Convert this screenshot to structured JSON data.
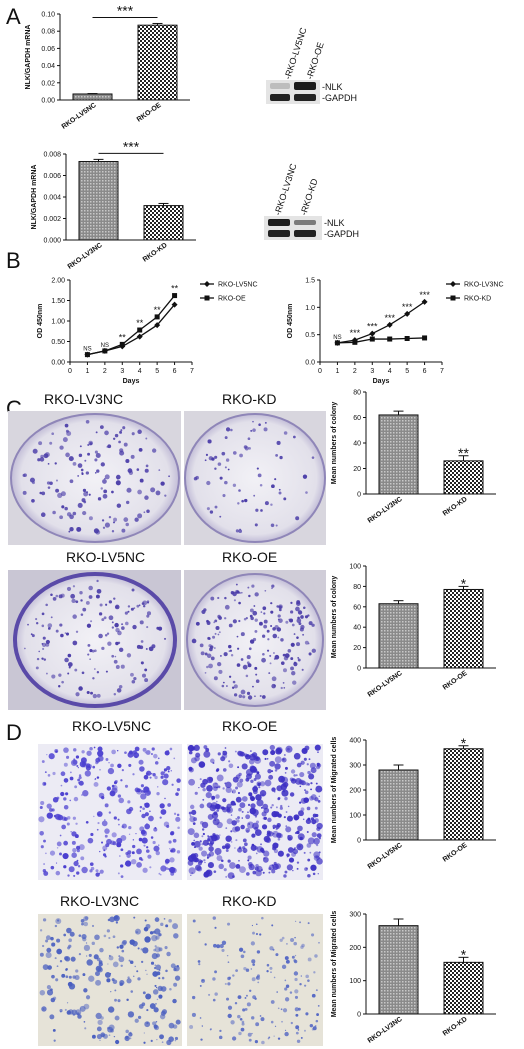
{
  "panels": {
    "A": "A",
    "B": "B",
    "C": "C",
    "D": "D"
  },
  "colors": {
    "bar_fill": "#9a9a9a",
    "bar_dark": "#555555",
    "stain": "#4a3ca8",
    "dish_bg": "#e8e6ee",
    "field_bg": "#ecebf4",
    "field_bg2": "#e6e3d8"
  },
  "chart_data": [
    {
      "id": "A-top",
      "type": "bar",
      "categories": [
        "RKO-LV5NC",
        "RKO-OE"
      ],
      "values": [
        0.007,
        0.087
      ],
      "errors": [
        0.0005,
        0.002
      ],
      "ylabel": "NLK/GAPDH mRNA",
      "ylim": [
        0,
        0.1
      ],
      "yticks": [
        "0.00",
        "0.02",
        "0.04",
        "0.06",
        "0.08",
        "0.10"
      ],
      "significance": "***"
    },
    {
      "id": "A-bottom",
      "type": "bar",
      "categories": [
        "RKO-LV3NC",
        "RKO-KD"
      ],
      "values": [
        0.0073,
        0.0032
      ],
      "errors": [
        0.0002,
        0.0002
      ],
      "ylabel": "NLK/GAPDH mRNA",
      "ylim": [
        0,
        0.008
      ],
      "yticks": [
        "0.000",
        "0.002",
        "0.004",
        "0.006",
        "0.008"
      ],
      "significance": "***"
    },
    {
      "id": "B-left",
      "type": "line",
      "x": [
        1,
        2,
        3,
        4,
        5,
        6
      ],
      "series": [
        {
          "name": "RKO-LV5NC",
          "values": [
            0.18,
            0.27,
            0.38,
            0.62,
            0.9,
            1.4
          ]
        },
        {
          "name": "RKO-OE",
          "values": [
            0.18,
            0.27,
            0.43,
            0.78,
            1.1,
            1.62
          ]
        }
      ],
      "annotations": [
        "NS",
        "NS",
        "**",
        "**",
        "**",
        "**"
      ],
      "xlabel": "Days",
      "ylabel": "OD 450nm",
      "xlim": [
        0,
        7
      ],
      "ylim": [
        0,
        2.0
      ],
      "xticks": [
        "0",
        "1",
        "2",
        "3",
        "4",
        "5",
        "6",
        "7"
      ],
      "yticks": [
        "0.00",
        "0.50",
        "1.00",
        "1.50",
        "2.00"
      ],
      "legend": "top-right"
    },
    {
      "id": "B-right",
      "type": "line",
      "x": [
        1,
        2,
        3,
        4,
        5,
        6
      ],
      "series": [
        {
          "name": "RKO-LV3NC",
          "values": [
            0.35,
            0.4,
            0.52,
            0.68,
            0.88,
            1.1
          ]
        },
        {
          "name": "RKO-KD",
          "values": [
            0.35,
            0.36,
            0.42,
            0.42,
            0.43,
            0.44
          ]
        }
      ],
      "annotations": [
        "NS",
        "***",
        "***",
        "***",
        "***",
        "***"
      ],
      "xlabel": "Days",
      "ylabel": "OD 450nm",
      "xlim": [
        0,
        7
      ],
      "ylim": [
        0,
        1.5
      ],
      "xticks": [
        "0",
        "1",
        "2",
        "3",
        "4",
        "5",
        "6",
        "7"
      ],
      "yticks": [
        "0.0",
        "0.5",
        "1.0",
        "1.5"
      ],
      "legend": "top-right"
    },
    {
      "id": "C-top",
      "type": "bar",
      "categories": [
        "RKO-LV3NC",
        "RKO-KD"
      ],
      "values": [
        62,
        26
      ],
      "errors": [
        3,
        4
      ],
      "ylabel": "Mean numbers of colony",
      "ylim": [
        0,
        80
      ],
      "yticks": [
        "0",
        "20",
        "40",
        "60",
        "80"
      ],
      "significance": "**"
    },
    {
      "id": "C-bottom",
      "type": "bar",
      "categories": [
        "RKO-LV5NC",
        "RKO-OE"
      ],
      "values": [
        63,
        77
      ],
      "errors": [
        3,
        3
      ],
      "ylabel": "Mean numbers of colony",
      "ylim": [
        0,
        100
      ],
      "yticks": [
        "0",
        "20",
        "40",
        "60",
        "80",
        "100"
      ],
      "significance": "*"
    },
    {
      "id": "D-top",
      "type": "bar",
      "categories": [
        "RKO-LV5NC",
        "RKO-OE"
      ],
      "values": [
        280,
        365
      ],
      "errors": [
        20,
        12
      ],
      "ylabel": "Mean numbers of Migrated cells",
      "ylim": [
        0,
        400
      ],
      "yticks": [
        "0",
        "100",
        "200",
        "300",
        "400"
      ],
      "significance": "*"
    },
    {
      "id": "D-bottom",
      "type": "bar",
      "categories": [
        "RKO-LV3NC",
        "RKO-KD"
      ],
      "values": [
        265,
        155
      ],
      "errors": [
        20,
        15
      ],
      "ylabel": "Mean numbers of Migrated cells",
      "ylim": [
        0,
        300
      ],
      "yticks": [
        "0",
        "100",
        "200",
        "300"
      ],
      "significance": "*"
    }
  ],
  "blots": [
    {
      "lanes": [
        "-RKO-LV5NC",
        "-RKO-OE"
      ],
      "bands": [
        "-NLK",
        "-GAPDH"
      ]
    },
    {
      "lanes": [
        "-RKO-LV3NC",
        "-RKO-KD"
      ],
      "bands": [
        "-NLK",
        "-GAPDH"
      ]
    }
  ],
  "image_labels": {
    "c_top_left": "RKO-LV3NC",
    "c_top_right": "RKO-KD",
    "c_bottom_left": "RKO-LV5NC",
    "c_bottom_right": "RKO-OE",
    "d_top_left": "RKO-LV5NC",
    "d_top_right": "RKO-OE",
    "d_bottom_left": "RKO-LV3NC",
    "d_bottom_right": "RKO-KD"
  }
}
